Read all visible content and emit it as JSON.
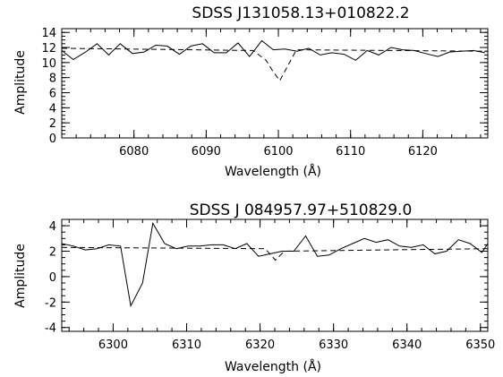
{
  "chart_data": [
    {
      "type": "line",
      "title": "SDSS J131058.13+010822.2",
      "xlabel": "Wavelength (Å)",
      "ylabel": "Amplitude",
      "xlim": [
        6070,
        6129
      ],
      "ylim": [
        0,
        14.5
      ],
      "xticks": [
        6080,
        6090,
        6100,
        6110,
        6120
      ],
      "yticks": [
        0,
        2,
        4,
        6,
        8,
        10,
        12,
        14
      ],
      "xminor": 2,
      "yminor": 0.5,
      "grid": false,
      "series": [
        {
          "style": "solid",
          "x": [
            6070,
            6071.6,
            6073.3,
            6074.9,
            6076.5,
            6078.1,
            6079.8,
            6081.4,
            6083,
            6084.6,
            6086.3,
            6087.9,
            6089.5,
            6091.1,
            6092.8,
            6094.4,
            6096,
            6097.7,
            6099.3,
            6100.9,
            6102.6,
            6104.2,
            6105.8,
            6107.4,
            6109.1,
            6110.7,
            6112.3,
            6113.9,
            6115.6,
            6117.2,
            6118.8,
            6120.4,
            6122.1,
            6123.7,
            6125.3,
            6127,
            6128.6
          ],
          "y": [
            11.6,
            10.4,
            11.4,
            12.5,
            11.0,
            12.5,
            11.2,
            11.4,
            12.3,
            12.2,
            11.1,
            12.2,
            12.5,
            11.3,
            11.3,
            12.6,
            10.8,
            12.9,
            11.7,
            11.8,
            11.5,
            11.9,
            11.0,
            11.3,
            11.1,
            10.3,
            11.6,
            11.0,
            12.0,
            11.7,
            11.6,
            11.2,
            10.8,
            11.4,
            11.5,
            11.6,
            11.3
          ]
        },
        {
          "style": "dashed",
          "x": [
            6070,
            6096.5,
            6098.3,
            6099.2,
            6100.2,
            6102.5,
            6129
          ],
          "y": [
            11.9,
            11.6,
            10.3,
            8.9,
            7.6,
            11.7,
            11.5
          ]
        }
      ]
    },
    {
      "type": "line",
      "title": "SDSS J 084957.97+510829.0",
      "xlabel": "Wavelength (Å)",
      "ylabel": "Amplitude",
      "xlim": [
        6293,
        6351
      ],
      "ylim": [
        -4.3,
        4.5
      ],
      "xticks": [
        6300,
        6310,
        6320,
        6330,
        6340,
        6350
      ],
      "yticks": [
        -4,
        -2,
        0,
        2,
        4
      ],
      "xminor": 2,
      "yminor": 0.5,
      "grid": false,
      "series": [
        {
          "style": "solid",
          "x": [
            6293,
            6294.6,
            6296.2,
            6297.8,
            6299.4,
            6301,
            6302.4,
            6304,
            6305.4,
            6307,
            6308.6,
            6310.2,
            6311.8,
            6313.4,
            6315,
            6316.6,
            6318.2,
            6319.8,
            6321.4,
            6323,
            6324.6,
            6326.2,
            6327.8,
            6329.4,
            6331,
            6332.6,
            6334.2,
            6335.8,
            6337.4,
            6339,
            6340.6,
            6342.2,
            6343.8,
            6345.4,
            6347,
            6348.6,
            6350.2,
            6351
          ],
          "y": [
            2.6,
            2.4,
            2.1,
            2.2,
            2.5,
            2.4,
            -2.3,
            -0.5,
            4.2,
            2.6,
            2.2,
            2.4,
            2.4,
            2.5,
            2.5,
            2.2,
            2.6,
            1.6,
            1.8,
            2.0,
            2.0,
            3.2,
            1.6,
            1.7,
            2.2,
            2.6,
            3.0,
            2.7,
            2.9,
            2.4,
            2.3,
            2.5,
            1.8,
            2.0,
            2.9,
            2.6,
            1.9,
            2.6
          ]
        },
        {
          "style": "dashed",
          "x": [
            6293,
            6320.7,
            6322.1,
            6323.3,
            6351
          ],
          "y": [
            2.3,
            2.2,
            1.3,
            2.0,
            2.2
          ]
        }
      ]
    }
  ]
}
